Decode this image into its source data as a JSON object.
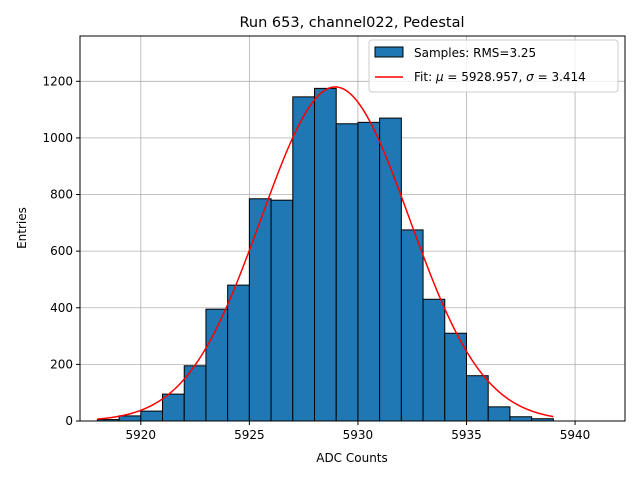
{
  "chart_data": {
    "type": "bar",
    "title": "Run 653, channel022, Pedestal",
    "xlabel": "ADC Counts",
    "ylabel": "Entries",
    "xlim": [
      5917.2,
      5942.3
    ],
    "ylim": [
      0,
      1360
    ],
    "xticks": [
      5920,
      5925,
      5930,
      5935,
      5940
    ],
    "yticks": [
      0,
      200,
      400,
      600,
      800,
      1000,
      1200
    ],
    "grid": true,
    "legend_position": "top-right",
    "bin_width": 1,
    "bins": [
      {
        "left": 5918,
        "count": 5
      },
      {
        "left": 5919,
        "count": 18
      },
      {
        "left": 5920,
        "count": 35
      },
      {
        "left": 5921,
        "count": 95
      },
      {
        "left": 5922,
        "count": 195
      },
      {
        "left": 5923,
        "count": 395
      },
      {
        "left": 5924,
        "count": 480
      },
      {
        "left": 5925,
        "count": 785
      },
      {
        "left": 5926,
        "count": 780
      },
      {
        "left": 5927,
        "count": 1145
      },
      {
        "left": 5928,
        "count": 1175
      },
      {
        "left": 5929,
        "count": 1050
      },
      {
        "left": 5930,
        "count": 1055
      },
      {
        "left": 5931,
        "count": 1070
      },
      {
        "left": 5932,
        "count": 675
      },
      {
        "left": 5933,
        "count": 430
      },
      {
        "left": 5934,
        "count": 310
      },
      {
        "left": 5935,
        "count": 160
      },
      {
        "left": 5936,
        "count": 50
      },
      {
        "left": 5937,
        "count": 15
      },
      {
        "left": 5938,
        "count": 8
      }
    ],
    "fit": {
      "mu": 5928.957,
      "sigma": 3.414,
      "amplitude": 1180,
      "x_range": [
        5918,
        5939
      ]
    },
    "series": [
      {
        "name": "Samples: RMS=3.25",
        "color": "#1f77b4",
        "kind": "histogram"
      },
      {
        "name": "Fit: μ = 5928.957, σ = 3.414",
        "color": "#ff0000",
        "kind": "line"
      }
    ],
    "legend": {
      "hist_label": "Samples: RMS=3.25",
      "fit_label_prefix": "Fit: ",
      "fit_mu_symbol": "μ",
      "fit_mu_text": " = 5928.957, ",
      "fit_sigma_symbol": "σ",
      "fit_sigma_text": " = 3.414"
    }
  }
}
